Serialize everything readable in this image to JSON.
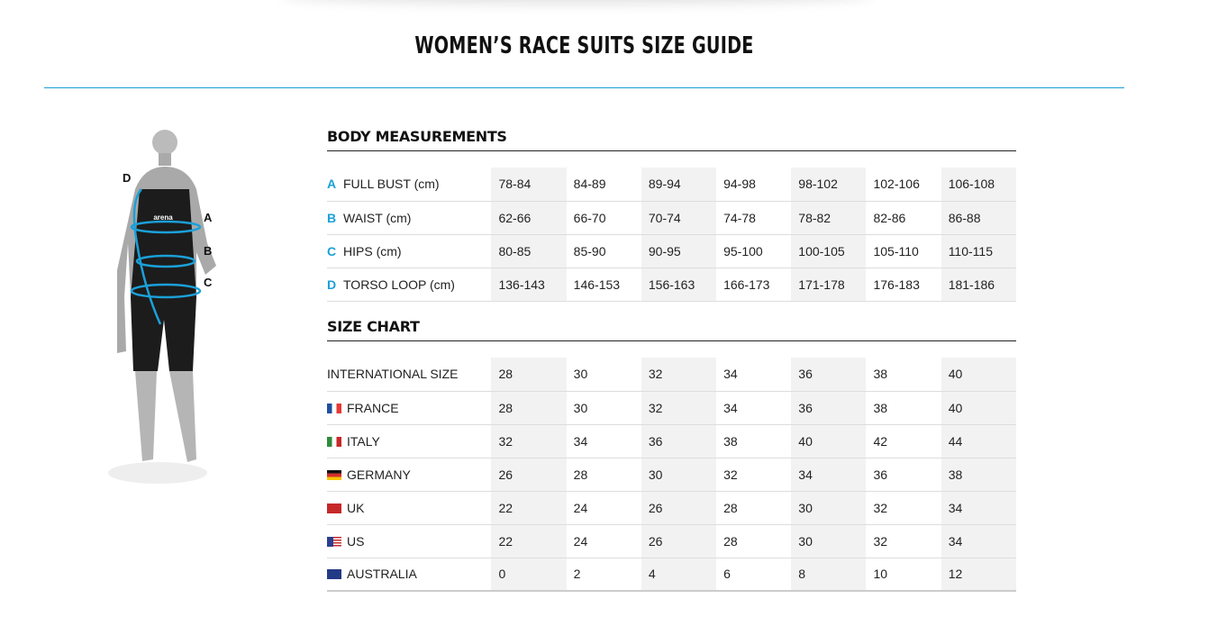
{
  "title": "WOMEN’S RACE SUITS SIZE GUIDE",
  "figure": {
    "labels": [
      "A",
      "B",
      "C",
      "D"
    ],
    "logo": "arena",
    "accent": "#1ba0d8"
  },
  "body": {
    "title": "BODY MEASUREMENTS",
    "rows": [
      {
        "letter": "A",
        "label": "FULL BUST (cm)",
        "values": [
          "78-84",
          "84-89",
          "89-94",
          "94-98",
          "98-102",
          "102-106",
          "106-108"
        ]
      },
      {
        "letter": "B",
        "label": "WAIST (cm)",
        "values": [
          "62-66",
          "66-70",
          "70-74",
          "74-78",
          "78-82",
          "82-86",
          "86-88"
        ]
      },
      {
        "letter": "C",
        "label": "HIPS (cm)",
        "values": [
          "80-85",
          "85-90",
          "90-95",
          "95-100",
          "100-105",
          "105-110",
          "110-115"
        ]
      },
      {
        "letter": "D",
        "label": "TORSO LOOP (cm)",
        "values": [
          "136-143",
          "146-153",
          "156-163",
          "166-173",
          "171-178",
          "176-183",
          "181-186"
        ]
      }
    ]
  },
  "size": {
    "title": "SIZE CHART",
    "rows": [
      {
        "flag": "",
        "label": "INTERNATIONAL SIZE",
        "values": [
          "28",
          "30",
          "32",
          "34",
          "36",
          "38",
          "40"
        ]
      },
      {
        "flag": "france-flag-icon",
        "label": "FRANCE",
        "values": [
          "28",
          "30",
          "32",
          "34",
          "36",
          "38",
          "40"
        ]
      },
      {
        "flag": "italy-flag-icon",
        "label": "ITALY",
        "values": [
          "32",
          "34",
          "36",
          "38",
          "40",
          "42",
          "44"
        ]
      },
      {
        "flag": "germany-flag-icon",
        "label": "GERMANY",
        "values": [
          "26",
          "28",
          "30",
          "32",
          "34",
          "36",
          "38"
        ]
      },
      {
        "flag": "uk-flag-icon",
        "label": "UK",
        "values": [
          "22",
          "24",
          "26",
          "28",
          "30",
          "32",
          "34"
        ]
      },
      {
        "flag": "us-flag-icon",
        "label": "US",
        "values": [
          "22",
          "24",
          "26",
          "28",
          "30",
          "32",
          "34"
        ]
      },
      {
        "flag": "australia-flag-icon",
        "label": "AUSTRALIA",
        "values": [
          "0",
          "2",
          "4",
          "6",
          "8",
          "10",
          "12"
        ]
      }
    ]
  }
}
